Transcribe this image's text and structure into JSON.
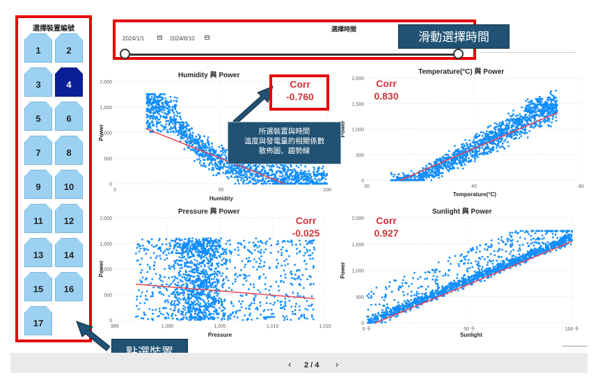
{
  "device_panel": {
    "title": "選擇裝置編號",
    "devices": [
      "1",
      "2",
      "3",
      "4",
      "5",
      "6",
      "7",
      "8",
      "9",
      "10",
      "11",
      "12",
      "13",
      "14",
      "15",
      "16",
      "17"
    ],
    "selected": "4"
  },
  "date_slicer": {
    "title": "選擇時間",
    "start": "2024/1/1",
    "end": "2024/8/10"
  },
  "callouts": {
    "time": "滑動選擇時間",
    "desc_lines": [
      "所選裝置與時間",
      "溫度與發電量的相關係數",
      "散佈圖、趨勢線"
    ],
    "click": "點選裝置"
  },
  "colors": {
    "point": "#118dff",
    "trend": "#e8464f",
    "corr": "#d13438",
    "selected_device": "#0c1e96",
    "device": "#9cd1f2",
    "highlight": "#e60000",
    "callout": "#215273"
  },
  "nav": {
    "page": "2 / 4",
    "prev": "‹",
    "next": "›"
  },
  "chart_data": [
    {
      "type": "scatter",
      "title": "Humidity 與 Power",
      "xlabel": "Humidity",
      "ylabel": "Power",
      "corr_label": "Corr",
      "corr_value": "-0.760",
      "xlim": [
        0,
        100
      ],
      "ylim": [
        0,
        2000
      ],
      "xticks": [
        "0",
        "50",
        "100"
      ],
      "yticks": [
        "0",
        "500",
        "1,000",
        "1,500",
        "2,000"
      ],
      "trend": [
        [
          15,
          1070
        ],
        [
          80,
          0
        ]
      ],
      "points_desc": "dense cloud, high power at 20-35 humidity decreasing toward 100"
    },
    {
      "type": "scatter",
      "title": "Temperature(°C) 與 Power",
      "xlabel": "Temperature(°C)",
      "ylabel": "Power",
      "corr_label": "Corr",
      "corr_value": "0.830",
      "xlim": [
        15,
        60
      ],
      "ylim": [
        0,
        2000
      ],
      "xticks": [
        "20",
        "40",
        "60"
      ],
      "yticks": [
        "0",
        "500",
        "1,000",
        "1,500",
        "2,000"
      ],
      "trend": [
        [
          22,
          0
        ],
        [
          55,
          1320
        ]
      ]
    },
    {
      "type": "scatter",
      "title": "Pressure 與 Power",
      "xlabel": "Pressure",
      "ylabel": "Power",
      "corr_label": "Corr",
      "corr_value": "-0.025",
      "xlim": [
        995,
        1015
      ],
      "ylim": [
        0,
        2000
      ],
      "xticks": [
        "995",
        "1,000",
        "1,005",
        "1,010",
        "1,015"
      ],
      "yticks": [
        "0",
        "500",
        "1,000",
        "1,500",
        "2,000"
      ],
      "trend": [
        [
          997,
          700
        ],
        [
          1014,
          420
        ]
      ]
    },
    {
      "type": "scatter",
      "title": "Sunlight 與 Power",
      "xlabel": "Sunlight",
      "ylabel": "Power",
      "corr_label": "Corr",
      "corr_value": "0.927",
      "xlim": [
        0,
        120
      ],
      "ylim": [
        0,
        2000
      ],
      "xticks": [
        "0 千",
        "50 千",
        "100 千"
      ],
      "yticks": [
        "0",
        "500",
        "1,000",
        "1,500",
        "2,000"
      ],
      "trend": [
        [
          5,
          0
        ],
        [
          120,
          1550
        ]
      ]
    }
  ]
}
